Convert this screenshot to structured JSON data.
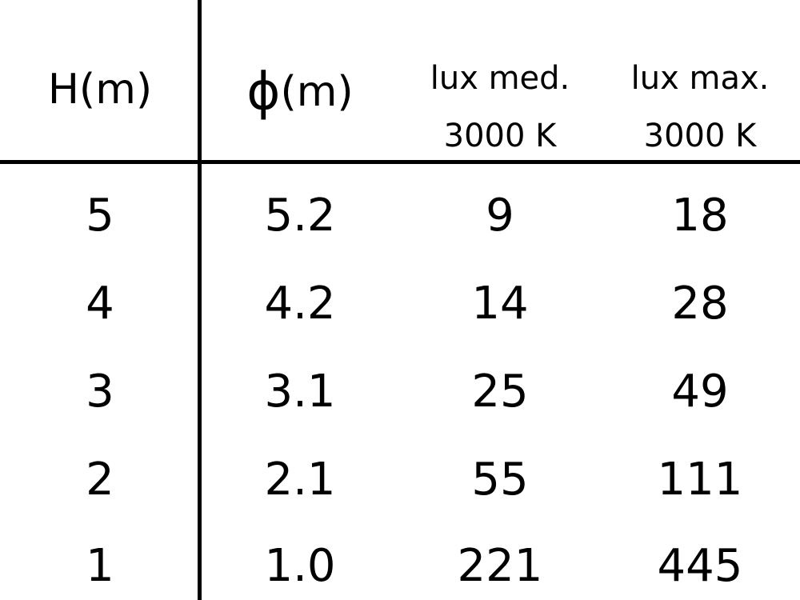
{
  "headers": {
    "h": "H(m)",
    "phi_symbol": "ϕ",
    "phi_unit": "(m)",
    "lux_med_line1": "lux med.",
    "lux_med_line2": "3000 K",
    "lux_max_line1": "lux max.",
    "lux_max_line2": "3000 K"
  },
  "rows": [
    [
      "5",
      "5.2",
      "9",
      "18"
    ],
    [
      "4",
      "4.2",
      "14",
      "28"
    ],
    [
      "3",
      "3.1",
      "25",
      "49"
    ],
    [
      "2",
      "2.1",
      "55",
      "111"
    ],
    [
      "1",
      "1.0",
      "221",
      "445"
    ]
  ]
}
